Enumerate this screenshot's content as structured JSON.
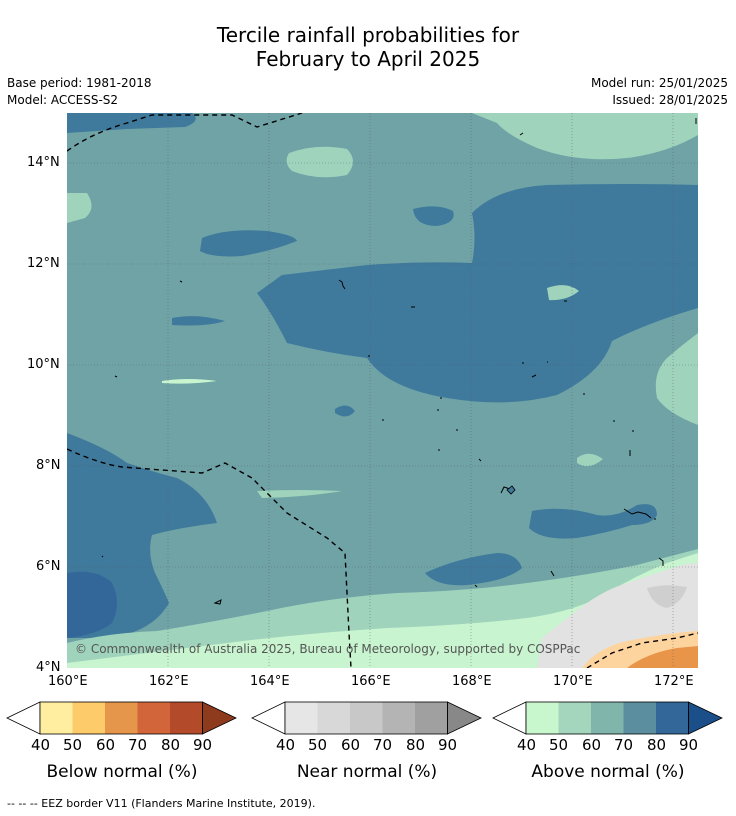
{
  "title": {
    "line1": "Tercile rainfall probabilities for",
    "line2": "February to April 2025"
  },
  "meta": {
    "base_period": "Base period: 1981-2018",
    "model": "Model: ACCESS-S2",
    "model_run": "Model run: 25/01/2025",
    "issued": "Issued: 28/01/2025"
  },
  "map": {
    "lat_ticks": [
      "14°N",
      "12°N",
      "10°N",
      "8°N",
      "6°N",
      "4°N"
    ],
    "lon_ticks": [
      "160°E",
      "162°E",
      "164°E",
      "166°E",
      "168°E",
      "170°E",
      "172°E"
    ],
    "copyright": "© Commonwealth of Australia 2025, Bureau of Meteorology, supported by COSPPac",
    "colors": {
      "ocean_70": "#6fa3a6",
      "ocean_80": "#3f7a9c",
      "ocean_90": "#33679a",
      "above_50": "#9fd3bc",
      "above_40": "#c8f5cf",
      "near": "#e0e0e0",
      "below_50": "#fdd49e",
      "below_60": "#e8954a"
    }
  },
  "colorbars": [
    {
      "name": "below",
      "label": "Below normal (%)",
      "ticks": [
        "40",
        "50",
        "60",
        "70",
        "80",
        "90"
      ],
      "colors": [
        "#ffeda0",
        "#fdcb6a",
        "#e6964a",
        "#d2653a",
        "#b34a2a",
        "#8e3a1d"
      ]
    },
    {
      "name": "near",
      "label": "Near normal (%)",
      "ticks": [
        "40",
        "50",
        "60",
        "70",
        "80",
        "90"
      ],
      "colors": [
        "#e6e6e6",
        "#d8d8d8",
        "#c8c8c8",
        "#b4b4b4",
        "#a0a0a0",
        "#888888"
      ]
    },
    {
      "name": "above",
      "label": "Above normal (%)",
      "ticks": [
        "40",
        "50",
        "60",
        "70",
        "80",
        "90"
      ],
      "colors": [
        "#c8f7cd",
        "#a3d6bd",
        "#80b5ac",
        "#5b8fa0",
        "#336699",
        "#1b4f8a"
      ]
    }
  ],
  "footer": {
    "legend_line": "--  --  -- EEZ border V11 (Flanders Marine Institute, 2019)."
  }
}
